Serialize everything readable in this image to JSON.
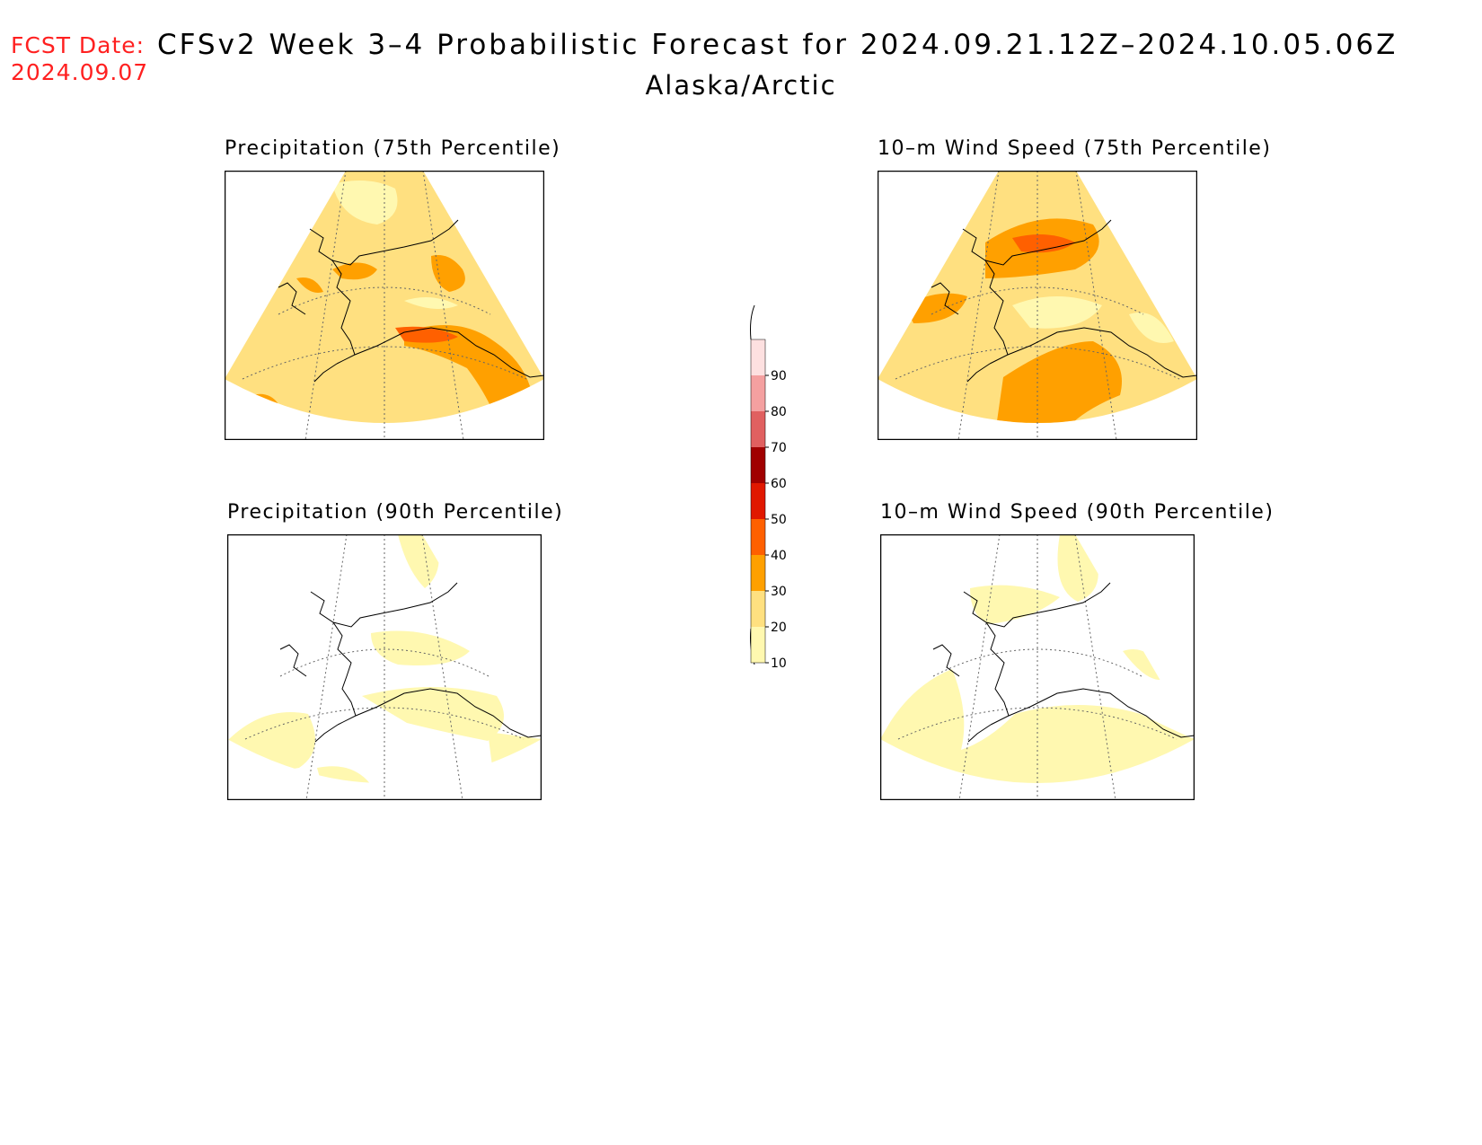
{
  "header": {
    "fcst_label": "FCST Date:",
    "fcst_date": "2024.09.07",
    "title": "CFSv2 Week 3–4 Probabilistic Forecast for 2024.09.21.12Z–2024.10.05.06Z",
    "region": "Alaska/Arctic"
  },
  "panels": [
    {
      "id": "precip-75",
      "title": "Precipitation (75th Percentile)"
    },
    {
      "id": "wind-75",
      "title": "10–m Wind Speed (75th Percentile)"
    },
    {
      "id": "precip-90",
      "title": "Precipitation (90th Percentile)"
    },
    {
      "id": "wind-90",
      "title": "10–m Wind Speed (90th Percentile)"
    }
  ],
  "colorbar": {
    "labels": [
      "90",
      "80",
      "70",
      "60",
      "50",
      "40",
      "30",
      "20",
      "10"
    ],
    "colors": {
      "90": "#fde0e0",
      "80": "#f4a0a0",
      "70": "#e06060",
      "60": "#a00000",
      "50": "#e01800",
      "40": "#ff6000",
      "30": "#ffa000",
      "20": "#ffe080",
      "10": "#fff8b0"
    }
  },
  "palette": {
    "fill_10": "#fff8b0",
    "fill_20": "#ffe080",
    "fill_30": "#ffa000",
    "fill_40": "#ff6000",
    "coast": "#000000",
    "grid": "#666666"
  }
}
